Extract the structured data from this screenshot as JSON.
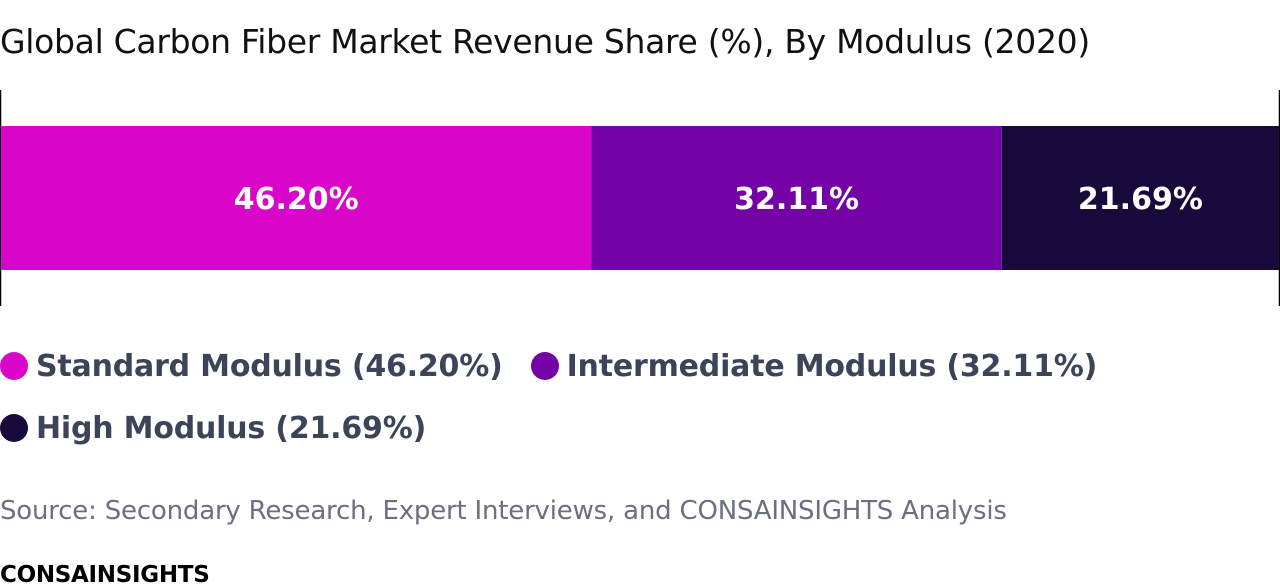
{
  "chart_data": {
    "type": "bar",
    "orientation": "horizontal-stacked-100",
    "title": "Global Carbon Fiber Market Revenue Share (%), By Modulus (2020)",
    "xlim": [
      0,
      100
    ],
    "series": [
      {
        "name": "Standard Modulus",
        "value": 46.2,
        "data_label": "46.20%",
        "color": "#d906c9",
        "legend_label": "Standard Modulus (46.20%)"
      },
      {
        "name": "Intermediate Modulus",
        "value": 32.11,
        "data_label": "32.11%",
        "color": "#7402a6",
        "legend_label": "Intermediate Modulus (32.11%)"
      },
      {
        "name": "High Modulus",
        "value": 21.69,
        "data_label": "21.69%",
        "color": "#170a3b",
        "legend_label": "High Modulus (21.69%)"
      }
    ],
    "legend_position": "bottom",
    "grid": false
  },
  "source": "Source: Secondary Research, Expert Interviews, and CONSAINSIGHTS Analysis",
  "brand": "CONSAINSIGHTS"
}
